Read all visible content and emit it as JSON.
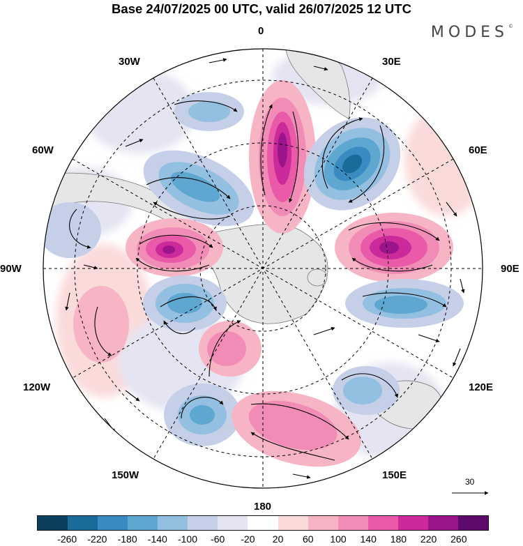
{
  "title": "Base 24/07/2025 00 UTC, valid 26/07/2025 12 UTC",
  "brand": "MODES",
  "brand_mark": "©",
  "longitude_labels": {
    "top": "0",
    "bottom": "180",
    "left": "90W",
    "right": "90E",
    "nw1": "30W",
    "nw2": "60W",
    "ne1": "30E",
    "ne2": "60E",
    "sw1": "120W",
    "sw2": "150W",
    "se1": "120E",
    "se2": "150E"
  },
  "vector_scale": {
    "label": "30"
  },
  "colorbar": {
    "colors": [
      "#0c3e5e",
      "#1a6a9a",
      "#3a8bc1",
      "#5ea7d0",
      "#93bfe0",
      "#c5cfe8",
      "#e4e4f2",
      "#ffffff",
      "#fbdada",
      "#f6b4c4",
      "#f08cb6",
      "#e95aa8",
      "#cc2a9b",
      "#9c148c",
      "#5c0b6c"
    ],
    "tick_labels": [
      "-260",
      "-220",
      "-180",
      "-140",
      "-100",
      "-60",
      "-20",
      "20",
      "60",
      "100",
      "140",
      "180",
      "220",
      "260"
    ]
  },
  "chart_data": {
    "type": "map",
    "projection": "south polar stereographic",
    "field": "shaded anomaly with wind vectors",
    "contour_levels": [
      -260,
      -220,
      -180,
      -140,
      -100,
      -60,
      -20,
      20,
      60,
      100,
      140,
      180,
      220,
      260
    ],
    "anomaly_centers": [
      {
        "sign": "positive",
        "longitude": "0",
        "value": 260
      },
      {
        "sign": "negative",
        "longitude": "30E",
        "value": -220
      },
      {
        "sign": "positive",
        "longitude": "90E",
        "value": 260
      },
      {
        "sign": "negative",
        "longitude": "110E",
        "value": -140
      },
      {
        "sign": "positive",
        "longitude": "60W-90W",
        "value": 260
      },
      {
        "sign": "negative",
        "longitude": "45W",
        "value": -140
      },
      {
        "sign": "negative",
        "longitude": "120W",
        "value": -140
      },
      {
        "sign": "positive",
        "longitude": "160W",
        "value": 100
      },
      {
        "sign": "positive",
        "longitude": "165E",
        "value": 140
      },
      {
        "sign": "negative",
        "longitude": "150W",
        "value": -140
      }
    ]
  }
}
